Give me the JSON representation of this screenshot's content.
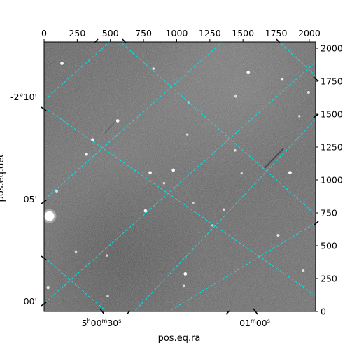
{
  "chart_data": {
    "type": "image",
    "pixel_axes": {
      "x": {
        "range": [
          0,
          2048
        ],
        "ticks": [
          0,
          250,
          500,
          750,
          1000,
          1250,
          1500,
          1750,
          2000
        ],
        "position": "top"
      },
      "y": {
        "range": [
          0,
          2048
        ],
        "ticks": [
          0,
          250,
          500,
          750,
          1000,
          1250,
          1500,
          1750,
          2000
        ],
        "position": "right"
      }
    },
    "world_axes": {
      "xlabel": "pos.eq.ra",
      "ylabel": "pos.eq.dec",
      "ra_ticks": [
        {
          "h": "5",
          "m": "00",
          "s": "30"
        },
        {
          "h": "",
          "m": "01",
          "s": "00"
        }
      ],
      "dec_ticks": [
        "-2°10'",
        "05'",
        "00'"
      ]
    },
    "grid": true,
    "grid_color": "#00e5ee",
    "colormap": "gray",
    "stars": [
      {
        "x": 135,
        "y": 1885,
        "b": 0.9
      },
      {
        "x": 825,
        "y": 1845,
        "b": 0.6
      },
      {
        "x": 1540,
        "y": 1815,
        "b": 0.95
      },
      {
        "x": 1795,
        "y": 1765,
        "b": 0.8
      },
      {
        "x": 1995,
        "y": 1665,
        "b": 0.7
      },
      {
        "x": 1445,
        "y": 1635,
        "b": 0.6
      },
      {
        "x": 1090,
        "y": 1590,
        "b": 0.5
      },
      {
        "x": 555,
        "y": 1450,
        "b": 0.9
      },
      {
        "x": 1080,
        "y": 1345,
        "b": 0.55
      },
      {
        "x": 365,
        "y": 1305,
        "b": 0.9
      },
      {
        "x": 1440,
        "y": 1225,
        "b": 0.6
      },
      {
        "x": 320,
        "y": 1195,
        "b": 0.85
      },
      {
        "x": 975,
        "y": 1075,
        "b": 0.9
      },
      {
        "x": 800,
        "y": 1055,
        "b": 0.9
      },
      {
        "x": 1855,
        "y": 1055,
        "b": 0.95
      },
      {
        "x": 1490,
        "y": 1050,
        "b": 0.5
      },
      {
        "x": 905,
        "y": 975,
        "b": 0.55
      },
      {
        "x": 95,
        "y": 915,
        "b": 0.65
      },
      {
        "x": 765,
        "y": 765,
        "b": 0.9
      },
      {
        "x": 1355,
        "y": 775,
        "b": 0.6
      },
      {
        "x": 1270,
        "y": 655,
        "b": 0.5
      },
      {
        "x": 1765,
        "y": 580,
        "b": 0.7
      },
      {
        "x": 40,
        "y": 725,
        "b": 1.0,
        "r": 7
      },
      {
        "x": 240,
        "y": 455,
        "b": 0.55
      },
      {
        "x": 475,
        "y": 425,
        "b": 0.5
      },
      {
        "x": 1065,
        "y": 285,
        "b": 0.95
      },
      {
        "x": 1055,
        "y": 195,
        "b": 0.55
      },
      {
        "x": 1955,
        "y": 310,
        "b": 0.6
      },
      {
        "x": 30,
        "y": 180,
        "b": 0.75
      },
      {
        "x": 480,
        "y": 115,
        "b": 0.55
      },
      {
        "x": 1125,
        "y": 825,
        "b": 0.45
      },
      {
        "x": 1925,
        "y": 1485,
        "b": 0.5
      }
    ]
  }
}
